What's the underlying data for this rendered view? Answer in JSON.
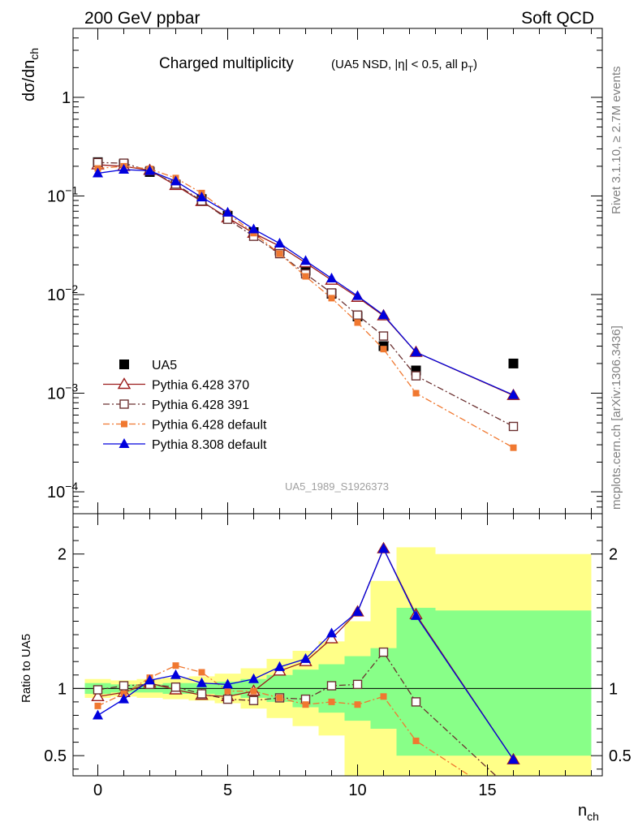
{
  "header": {
    "left": "200 GeV ppbar",
    "right": "Soft QCD"
  },
  "side_text": {
    "rivet": "Rivet 3.1.10, ≥ 2.7M events",
    "source": "mcplots.cern.ch [arXiv:1306.3436]"
  },
  "chart_data": [
    {
      "type": "scatter",
      "title": "Charged multiplicity",
      "subtitle_prefix": "(UA5 NSD, |η| < 0.5, all p",
      "subtitle_sub": "T",
      "subtitle_suffix": ")",
      "ylabel_main": "dσ/dn",
      "ylabel_sub": "ch",
      "yscale": "log",
      "ylim": [
        6e-05,
        5
      ],
      "xlim": [
        -0.9,
        19.2
      ],
      "ytick_labels": [
        {
          "value": 1,
          "mant": "1",
          "exp": ""
        },
        {
          "value": 0.1,
          "mant": "10",
          "exp": "−1"
        },
        {
          "value": 0.01,
          "mant": "10",
          "exp": "−2"
        },
        {
          "value": 0.001,
          "mant": "10",
          "exp": "−3"
        },
        {
          "value": 0.0001,
          "mant": "10",
          "exp": "−4"
        }
      ],
      "analysis_label": "UA5_1989_S1926373",
      "legend_position": "bottom-left",
      "x": [
        0,
        1,
        2,
        3,
        4,
        5,
        6,
        7,
        8,
        9,
        10,
        11,
        12.25,
        16
      ],
      "series": [
        {
          "name": "UA5",
          "color": "#000000",
          "marker": "square-filled",
          "line": "none",
          "values": [
            0.22,
            0.21,
            0.175,
            0.13,
            0.093,
            0.063,
            0.043,
            0.028,
            0.0175,
            0.0102,
            0.006,
            0.003,
            0.0017,
            0.002
          ]
        },
        {
          "name": "Pythia 6.428 370",
          "color": "#9b1b1b",
          "marker": "triangle-open",
          "line": "solid",
          "values": [
            0.207,
            0.2,
            0.182,
            0.128,
            0.088,
            0.06,
            0.042,
            0.031,
            0.021,
            0.014,
            0.0094,
            0.0061,
            0.0026,
            0.00095
          ]
        },
        {
          "name": "Pythia 6.428 391",
          "color": "#6b3030",
          "marker": "square-open",
          "line": "dashdot",
          "values": [
            0.218,
            0.215,
            0.18,
            0.132,
            0.089,
            0.058,
            0.039,
            0.026,
            0.0162,
            0.0104,
            0.0062,
            0.0038,
            0.0015,
            0.00046
          ]
        },
        {
          "name": "Pythia 6.428 default",
          "color": "#f07830",
          "marker": "square-filled-small",
          "line": "dashdot",
          "values": [
            0.19,
            0.2,
            0.188,
            0.152,
            0.107,
            0.067,
            0.042,
            0.026,
            0.0153,
            0.0092,
            0.0052,
            0.0028,
            0.001,
            0.00028
          ]
        },
        {
          "name": "Pythia 8.308 default",
          "color": "#0000dd",
          "marker": "triangle-filled",
          "line": "solid",
          "values": [
            0.17,
            0.185,
            0.18,
            0.141,
            0.097,
            0.068,
            0.046,
            0.033,
            0.022,
            0.0146,
            0.0097,
            0.0062,
            0.0026,
            0.00096
          ]
        }
      ]
    },
    {
      "type": "line",
      "ylabel": "Ratio to UA5",
      "xlabel_main": "n",
      "xlabel_sub": "ch",
      "ylim": [
        0.35,
        2.3
      ],
      "xlim": [
        -0.9,
        19.2
      ],
      "xticks": [
        0,
        5,
        10,
        15
      ],
      "yticks": [
        0.5,
        1,
        2
      ],
      "ytick_labels": [
        "0.5",
        "1",
        "2"
      ],
      "x": [
        0,
        1,
        2,
        3,
        4,
        5,
        6,
        7,
        8,
        9,
        10,
        11,
        12.25,
        16
      ],
      "bands": {
        "edges": [
          -0.5,
          0.5,
          1.5,
          2.5,
          3.5,
          4.5,
          5.5,
          6.5,
          7.5,
          8.5,
          9.5,
          10.5,
          11.5,
          13,
          19
        ],
        "green": [
          [
            0.96,
            1.04
          ],
          [
            0.97,
            1.03
          ],
          [
            0.97,
            1.03
          ],
          [
            0.96,
            1.04
          ],
          [
            0.96,
            1.04
          ],
          [
            0.95,
            1.05
          ],
          [
            0.93,
            1.07
          ],
          [
            0.9,
            1.1
          ],
          [
            0.86,
            1.14
          ],
          [
            0.82,
            1.18
          ],
          [
            0.76,
            1.24
          ],
          [
            0.7,
            1.3
          ],
          [
            0.5,
            1.6
          ],
          [
            0.5,
            1.58
          ]
        ],
        "yellow": [
          [
            0.93,
            1.07
          ],
          [
            0.94,
            1.06
          ],
          [
            0.93,
            1.07
          ],
          [
            0.92,
            1.08
          ],
          [
            0.91,
            1.09
          ],
          [
            0.89,
            1.11
          ],
          [
            0.85,
            1.15
          ],
          [
            0.78,
            1.22
          ],
          [
            0.72,
            1.28
          ],
          [
            0.65,
            1.35
          ],
          [
            0.3,
            1.5
          ],
          [
            0.3,
            1.8
          ],
          [
            0.3,
            2.05
          ],
          [
            0.3,
            2.0
          ]
        ]
      },
      "series": [
        {
          "name": "Pythia 6.428 370",
          "color": "#9b1b1b",
          "marker": "triangle-open",
          "line": "solid",
          "values": [
            0.94,
            0.97,
            1.04,
            0.99,
            0.95,
            0.94,
            0.98,
            1.13,
            1.2,
            1.37,
            1.57,
            2.04,
            1.55,
            0.47
          ]
        },
        {
          "name": "Pythia 6.428 391",
          "color": "#6b3030",
          "marker": "square-open",
          "line": "dashdot",
          "values": [
            0.99,
            1.02,
            1.03,
            1.01,
            0.96,
            0.92,
            0.91,
            0.93,
            0.92,
            1.02,
            1.03,
            1.27,
            0.9,
            0.23
          ]
        },
        {
          "name": "Pythia 6.428 default",
          "color": "#f07830",
          "marker": "square-filled-small",
          "line": "dashdot",
          "values": [
            0.87,
            0.96,
            1.08,
            1.17,
            1.12,
            0.98,
            0.98,
            0.93,
            0.88,
            0.9,
            0.88,
            0.94,
            0.61,
            0.14
          ]
        },
        {
          "name": "Pythia 8.308 default",
          "color": "#0000dd",
          "marker": "triangle-filled",
          "line": "solid",
          "values": [
            0.8,
            0.92,
            1.06,
            1.1,
            1.04,
            1.03,
            1.07,
            1.16,
            1.22,
            1.41,
            1.57,
            2.04,
            1.54,
            0.47
          ]
        }
      ]
    }
  ]
}
